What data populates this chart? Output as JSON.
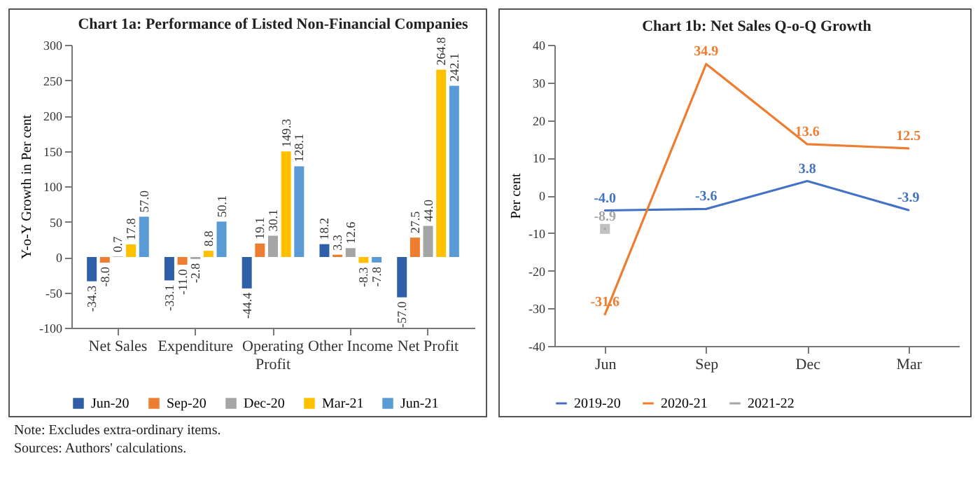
{
  "chart_data": [
    {
      "type": "bar",
      "title": "Chart 1a: Performance of Listed Non-Financial Companies",
      "ylabel": "Y-o-Y Growth in Per cent",
      "categories": [
        "Net Sales",
        "Expenditure",
        "Operating Profit",
        "Other Income",
        "Net Profit"
      ],
      "series": [
        {
          "name": "Jun-20",
          "color": "#2e5fa8",
          "values": [
            -34.3,
            -33.1,
            -44.4,
            18.2,
            -57.0
          ],
          "value_labels": [
            "-34.3",
            "-33.1",
            "-44.4",
            "18.2",
            "-57.0"
          ]
        },
        {
          "name": "Sep-20",
          "color": "#ed7d31",
          "values": [
            -8.0,
            -11.0,
            19.1,
            3.3,
            27.5
          ],
          "value_labels": [
            "-8.0",
            "-11.0",
            "19.1",
            "3.3",
            "27.5"
          ]
        },
        {
          "name": "Dec-20",
          "color": "#a5a5a5",
          "values": [
            0.7,
            -2.8,
            30.1,
            12.6,
            44.0
          ],
          "value_labels": [
            "0.7",
            "-2.8",
            "30.1",
            "12.6",
            "44.0"
          ]
        },
        {
          "name": "Mar-21",
          "color": "#ffc000",
          "values": [
            17.8,
            8.8,
            149.3,
            -8.3,
            264.8
          ],
          "value_labels": [
            "17.8",
            "8.8",
            "149.3",
            "-8.3",
            "264.8"
          ]
        },
        {
          "name": "Jun-21",
          "color": "#5b9bd5",
          "values": [
            57.0,
            50.1,
            128.1,
            -7.8,
            242.1
          ],
          "value_labels": [
            "57.0",
            "50.1",
            "128.1",
            "-7.8",
            "242.1"
          ]
        }
      ],
      "ylim": [
        -100,
        300
      ],
      "yticks": [
        -100,
        -50,
        0,
        50,
        100,
        150,
        200,
        250,
        300
      ],
      "grid": false,
      "legend": "bottom",
      "annotations": [
        "Note: Excludes extra-ordinary items.",
        "Sources: Authors' calculations."
      ]
    },
    {
      "type": "line",
      "title": "Chart 1b: Net Sales Q-o-Q Growth",
      "ylabel": "Per cent",
      "categories": [
        "Jun",
        "Sep",
        "Dec",
        "Mar"
      ],
      "series": [
        {
          "name": "2019-20",
          "color": "#4472c4",
          "values": [
            -4.0,
            -3.6,
            3.8,
            -3.9
          ],
          "value_labels": [
            "-4.0",
            "-3.6",
            "3.8",
            "-3.9"
          ]
        },
        {
          "name": "2020-21",
          "color": "#ed7d31",
          "values": [
            -31.6,
            34.9,
            13.6,
            12.5
          ],
          "value_labels": [
            "-31.6",
            "34.9",
            "13.6",
            "12.5"
          ]
        },
        {
          "name": "2021-22",
          "color": "#a5a5a5",
          "marker": "square",
          "values": [
            -8.9,
            null,
            null,
            null
          ],
          "value_labels": [
            "-8.9",
            null,
            null,
            null
          ]
        }
      ],
      "ylim": [
        -40,
        40
      ],
      "yticks": [
        -40,
        -30,
        -20,
        -10,
        0,
        10,
        20,
        30,
        40
      ],
      "grid": false,
      "legend": "bottom",
      "marker": "none"
    }
  ]
}
